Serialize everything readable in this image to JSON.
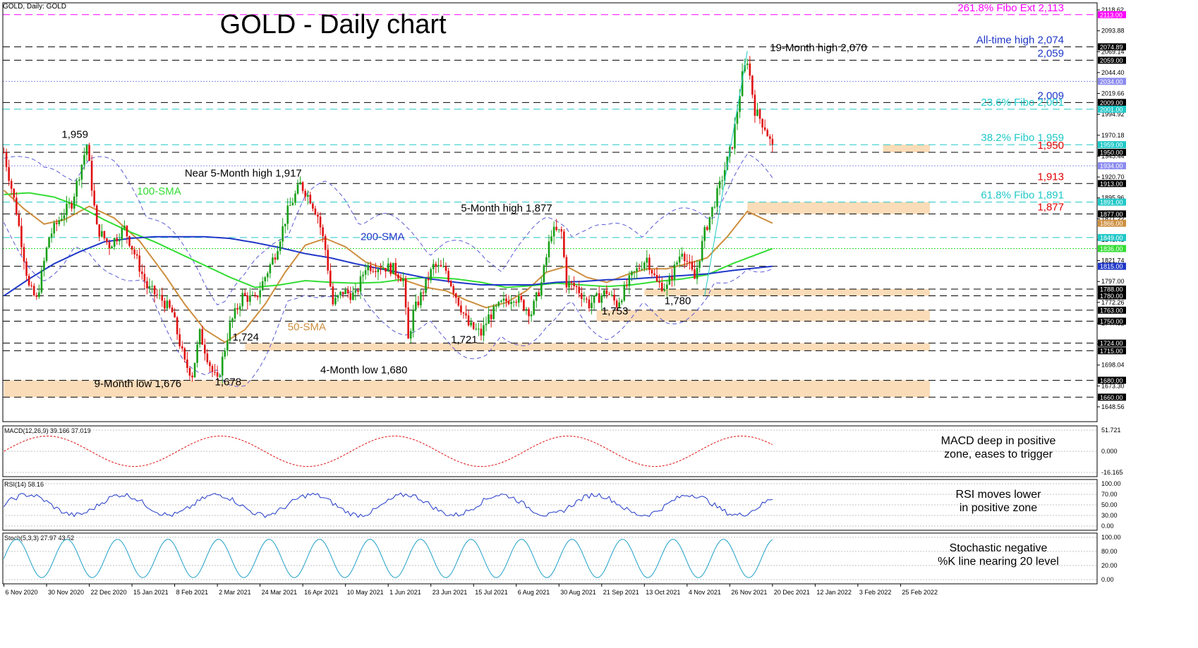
{
  "header": "GOLD, Daily: GOLD",
  "chart_data": {
    "type": "candlestick",
    "title": "GOLD - Daily chart",
    "main_y_ticks": [
      2118.62,
      2093.88,
      2069.14,
      2044.4,
      2019.66,
      1994.92,
      1970.18,
      1945.44,
      1920.7,
      1895.96,
      1871.22,
      1846.48,
      1821.74,
      1797.0,
      1772.26,
      1747.52,
      1722.78,
      1698.04,
      1673.3,
      1648.56
    ],
    "x_tick_labels": [
      "6 Nov 2020",
      "30 Nov 2020",
      "22 Dec 2020",
      "15 Jan 2021",
      "8 Feb 2021",
      "2 Mar 2021",
      "24 Mar 2021",
      "16 Apr 2021",
      "10 May 2021",
      "1 Jun 2021",
      "23 Jun 2021",
      "15 Jul 2021",
      "6 Aug 2021",
      "30 Aug 2021",
      "21 Sep 2021",
      "13 Oct 2021",
      "4 Nov 2021",
      "26 Nov 2021",
      "20 Dec 2021",
      "12 Jan 2022",
      "3 Feb 2022",
      "25 Feb 2022"
    ],
    "x_tick_pos": [
      0,
      17,
      34,
      51,
      68,
      85,
      102,
      119,
      136,
      153,
      170,
      187,
      204,
      221,
      238,
      255,
      272,
      289,
      306,
      323,
      340,
      357
    ],
    "level_boxes": [
      {
        "label": "2113.00",
        "color": "#ff00ff",
        "text": "#ffffff"
      },
      {
        "label": "2074.89",
        "color": "#000000",
        "text": "#ffffff"
      },
      {
        "label": "2059.00",
        "color": "#000000",
        "text": "#ffffff"
      },
      {
        "label": "2034.00",
        "color": "#8b8bf0",
        "text": "#ffffff"
      },
      {
        "label": "2009.00",
        "color": "#000000",
        "text": "#ffffff"
      },
      {
        "label": "2001.00",
        "color": "#20c8c8",
        "text": "#ffffff"
      },
      {
        "label": "1959.00",
        "color": "#20c8c8",
        "text": "#ffffff"
      },
      {
        "label": "1950.00",
        "color": "#000000",
        "text": "#ffffff"
      },
      {
        "label": "1934.00",
        "color": "#8b8bf0",
        "text": "#ffffff"
      },
      {
        "label": "1913.00",
        "color": "#000000",
        "text": "#ffffff"
      },
      {
        "label": "1891.00",
        "color": "#20c8c8",
        "text": "#ffffff"
      },
      {
        "label": "1877.00",
        "color": "#000000",
        "text": "#ffffff"
      },
      {
        "label": "1866.00",
        "color": "#cd8f3f",
        "text": "#ffffff"
      },
      {
        "label": "1849.00",
        "color": "#20c8c8",
        "text": "#ffffff"
      },
      {
        "label": "1836.00",
        "color": "#33dd33",
        "text": "#ffffff"
      },
      {
        "label": "1815.00",
        "color": "#1f37c8",
        "text": "#ffffff"
      },
      {
        "label": "1788.00",
        "color": "#000000",
        "text": "#ffffff"
      },
      {
        "label": "1780.00",
        "color": "#000000",
        "text": "#ffffff"
      },
      {
        "label": "1763.00",
        "color": "#000000",
        "text": "#ffffff"
      },
      {
        "label": "1750.00",
        "color": "#000000",
        "text": "#ffffff"
      },
      {
        "label": "1724.00",
        "color": "#000000",
        "text": "#ffffff"
      },
      {
        "label": "1715.00",
        "color": "#000000",
        "text": "#ffffff"
      },
      {
        "label": "1680.00",
        "color": "#000000",
        "text": "#ffffff"
      },
      {
        "label": "1660.00",
        "color": "#000000",
        "text": "#ffffff"
      }
    ],
    "levels": [
      {
        "value": 2113,
        "color": "#ff00ff",
        "dash": "10,6",
        "label": "261.8% Fibo Ext 2,113"
      },
      {
        "value": 2074.89,
        "color": "#000000",
        "dash": "10,6",
        "label": "All-time high 2,074",
        "label_color": "#1f37c8"
      },
      {
        "value": 2059,
        "color": "#000000",
        "dash": "10,6",
        "label": "2,059",
        "label_color": "#1f37c8"
      },
      {
        "value": 2034,
        "color": "#8b8bf0",
        "dash": "2,2",
        "label": ""
      },
      {
        "value": 2009,
        "color": "#000000",
        "dash": "10,6",
        "label": "2,009",
        "label_color": "#1f37c8"
      },
      {
        "value": 2001,
        "color": "#20c8c8",
        "dash": "10,6",
        "label": "23.6% Fibo 2,001",
        "label_color": "#20c8c8"
      },
      {
        "value": 1959,
        "color": "#20c8c8",
        "dash": "10,6",
        "label": "38.2% Fibo 1,959",
        "label_color": "#20c8c8"
      },
      {
        "value": 1950,
        "color": "#000000",
        "dash": "10,6",
        "label": "1,950",
        "label_color": "#e00000"
      },
      {
        "value": 1934,
        "color": "#8b8bf0",
        "dash": "2,2",
        "label": ""
      },
      {
        "value": 1913,
        "color": "#000000",
        "dash": "10,6",
        "label": "1,913",
        "label_color": "#e00000"
      },
      {
        "value": 1891,
        "color": "#20c8c8",
        "dash": "10,6",
        "label": "61.8% Fibo 1,891",
        "label_color": "#20c8c8"
      },
      {
        "value": 1877,
        "color": "#000000",
        "dash": "10,6",
        "label": "1,877",
        "label_color": "#e00000"
      },
      {
        "value": 1849,
        "color": "#20c8c8",
        "dash": "10,6",
        "label": ""
      },
      {
        "value": 1836,
        "color": "#33dd33",
        "dash": "2,2",
        "label": ""
      },
      {
        "value": 1815,
        "color": "#000000",
        "dash": "10,6",
        "label": ""
      },
      {
        "value": 1788,
        "color": "#000000",
        "dash": "10,6",
        "label": ""
      },
      {
        "value": 1780,
        "color": "#000000",
        "dash": "10,6",
        "label": ""
      },
      {
        "value": 1763,
        "color": "#000000",
        "dash": "10,6",
        "label": ""
      },
      {
        "value": 1750,
        "color": "#000000",
        "dash": "10,6",
        "label": ""
      },
      {
        "value": 1724,
        "color": "#000000",
        "dash": "10,6",
        "label": ""
      },
      {
        "value": 1715,
        "color": "#000000",
        "dash": "10,6",
        "label": ""
      },
      {
        "value": 1680,
        "color": "#000000",
        "dash": "10,6",
        "label": ""
      },
      {
        "value": 1660,
        "color": "#000000",
        "dash": "10,6",
        "label": ""
      }
    ],
    "zones": [
      {
        "from": 1680,
        "to": 1660,
        "start_bar": 0
      },
      {
        "from": 1724,
        "to": 1715,
        "start_bar": 96
      },
      {
        "from": 1763,
        "to": 1750,
        "start_bar": 236
      },
      {
        "from": 1788,
        "to": 1780,
        "start_bar": 255
      },
      {
        "from": 1891,
        "to": 1877,
        "start_bar": 296
      },
      {
        "from": 1959,
        "to": 1950,
        "start_bar": 350
      }
    ],
    "annotations": [
      {
        "text": "GOLD - Daily chart",
        "bar": 86,
        "price": 2091,
        "size": 38,
        "color": "#000000",
        "anchor": "start"
      },
      {
        "text": "19-Month high 2,070",
        "bar": 305,
        "price": 2070,
        "color": "#000000",
        "anchor": "start"
      },
      {
        "text": "1,959",
        "bar": 23,
        "price": 1967,
        "color": "#000000",
        "anchor": "start"
      },
      {
        "text": "Near 5-Month high 1,917",
        "bar": 72,
        "price": 1921,
        "color": "#000000",
        "anchor": "start"
      },
      {
        "text": "100-SMA",
        "bar": 53,
        "price": 1900,
        "color": "#33dd33",
        "anchor": "start"
      },
      {
        "text": "5-Month high 1,877",
        "bar": 182,
        "price": 1880,
        "color": "#000000",
        "anchor": "start"
      },
      {
        "text": "200-SMA",
        "bar": 142,
        "price": 1846,
        "color": "#1f37c8",
        "anchor": "start"
      },
      {
        "text": "50-SMA",
        "bar": 113,
        "price": 1739,
        "color": "#cd8f3f",
        "anchor": "start"
      },
      {
        "text": "1,724",
        "bar": 91,
        "price": 1727,
        "color": "#000000",
        "anchor": "start"
      },
      {
        "text": "1,721",
        "bar": 178,
        "price": 1724,
        "color": "#000000",
        "anchor": "start"
      },
      {
        "text": "1,753",
        "bar": 238,
        "price": 1758,
        "color": "#000000",
        "anchor": "start"
      },
      {
        "text": "1,780",
        "bar": 263,
        "price": 1770,
        "color": "#000000",
        "anchor": "start"
      },
      {
        "text": "4-Month low 1,680",
        "bar": 126,
        "price": 1688,
        "color": "#000000",
        "anchor": "start"
      },
      {
        "text": "9-Month low 1,676",
        "bar": 36,
        "price": 1672,
        "color": "#000000",
        "anchor": "start"
      },
      {
        "text": "1,678",
        "bar": 84,
        "price": 1674,
        "color": "#000000",
        "anchor": "start"
      }
    ],
    "price_path": [
      [
        0,
        1950
      ],
      [
        5,
        1880
      ],
      [
        10,
        1790
      ],
      [
        13,
        1775
      ],
      [
        18,
        1850
      ],
      [
        23,
        1875
      ],
      [
        27,
        1890
      ],
      [
        33,
        1959
      ],
      [
        37,
        1860
      ],
      [
        42,
        1840
      ],
      [
        48,
        1860
      ],
      [
        52,
        1830
      ],
      [
        57,
        1790
      ],
      [
        63,
        1775
      ],
      [
        67,
        1760
      ],
      [
        72,
        1700
      ],
      [
        75,
        1687
      ],
      [
        78,
        1735
      ],
      [
        83,
        1690
      ],
      [
        85,
        1678
      ],
      [
        90,
        1745
      ],
      [
        95,
        1780
      ],
      [
        100,
        1775
      ],
      [
        108,
        1830
      ],
      [
        113,
        1880
      ],
      [
        118,
        1912
      ],
      [
        122,
        1895
      ],
      [
        125,
        1875
      ],
      [
        128,
        1835
      ],
      [
        131,
        1770
      ],
      [
        135,
        1785
      ],
      [
        140,
        1780
      ],
      [
        144,
        1815
      ],
      [
        150,
        1815
      ],
      [
        155,
        1812
      ],
      [
        159,
        1800
      ],
      [
        160,
        1760
      ],
      [
        161,
        1727
      ],
      [
        163,
        1760
      ],
      [
        166,
        1780
      ],
      [
        171,
        1815
      ],
      [
        176,
        1810
      ],
      [
        180,
        1780
      ],
      [
        185,
        1745
      ],
      [
        190,
        1735
      ],
      [
        193,
        1755
      ],
      [
        198,
        1770
      ],
      [
        203,
        1780
      ],
      [
        210,
        1760
      ],
      [
        214,
        1795
      ],
      [
        218,
        1856
      ],
      [
        222,
        1855
      ],
      [
        224,
        1795
      ],
      [
        228,
        1790
      ],
      [
        233,
        1770
      ],
      [
        240,
        1785
      ],
      [
        244,
        1770
      ],
      [
        250,
        1803
      ],
      [
        256,
        1825
      ],
      [
        260,
        1795
      ],
      [
        264,
        1790
      ],
      [
        270,
        1835
      ],
      [
        275,
        1800
      ],
      [
        279,
        1855
      ],
      [
        285,
        1910
      ],
      [
        290,
        1960
      ],
      [
        294,
        2040
      ],
      [
        296,
        2060
      ],
      [
        299,
        2000
      ],
      [
        303,
        1980
      ],
      [
        306,
        1955
      ]
    ],
    "series": [
      {
        "name": "50-SMA",
        "color": "#cd8f3f",
        "path": [
          [
            0,
            1905
          ],
          [
            8,
            1883
          ],
          [
            16,
            1865
          ],
          [
            24,
            1870
          ],
          [
            34,
            1886
          ],
          [
            44,
            1872
          ],
          [
            54,
            1845
          ],
          [
            64,
            1805
          ],
          [
            72,
            1770
          ],
          [
            80,
            1740
          ],
          [
            88,
            1725
          ],
          [
            96,
            1740
          ],
          [
            104,
            1770
          ],
          [
            112,
            1808
          ],
          [
            120,
            1840
          ],
          [
            128,
            1848
          ],
          [
            136,
            1838
          ],
          [
            144,
            1820
          ],
          [
            152,
            1812
          ],
          [
            160,
            1798
          ],
          [
            168,
            1790
          ],
          [
            176,
            1786
          ],
          [
            184,
            1775
          ],
          [
            192,
            1766
          ],
          [
            200,
            1772
          ],
          [
            208,
            1786
          ],
          [
            216,
            1808
          ],
          [
            224,
            1815
          ],
          [
            232,
            1802
          ],
          [
            240,
            1796
          ],
          [
            248,
            1805
          ],
          [
            256,
            1812
          ],
          [
            264,
            1812
          ],
          [
            272,
            1818
          ],
          [
            280,
            1825
          ],
          [
            288,
            1850
          ],
          [
            296,
            1880
          ],
          [
            306,
            1866
          ]
        ]
      },
      {
        "name": "100-SMA",
        "color": "#33dd33",
        "path": [
          [
            0,
            1900
          ],
          [
            10,
            1902
          ],
          [
            20,
            1897
          ],
          [
            30,
            1886
          ],
          [
            40,
            1870
          ],
          [
            50,
            1856
          ],
          [
            60,
            1844
          ],
          [
            70,
            1830
          ],
          [
            80,
            1816
          ],
          [
            90,
            1802
          ],
          [
            100,
            1790
          ],
          [
            110,
            1793
          ],
          [
            120,
            1798
          ],
          [
            130,
            1796
          ],
          [
            140,
            1795
          ],
          [
            150,
            1796
          ],
          [
            160,
            1800
          ],
          [
            170,
            1802
          ],
          [
            180,
            1800
          ],
          [
            190,
            1796
          ],
          [
            200,
            1790
          ],
          [
            210,
            1792
          ],
          [
            220,
            1795
          ],
          [
            230,
            1793
          ],
          [
            240,
            1791
          ],
          [
            250,
            1793
          ],
          [
            260,
            1797
          ],
          [
            270,
            1800
          ],
          [
            280,
            1805
          ],
          [
            290,
            1818
          ],
          [
            306,
            1836
          ]
        ]
      },
      {
        "name": "200-SMA",
        "color": "#1f37c8",
        "path": [
          [
            0,
            1780
          ],
          [
            10,
            1800
          ],
          [
            20,
            1818
          ],
          [
            30,
            1832
          ],
          [
            40,
            1844
          ],
          [
            50,
            1848
          ],
          [
            60,
            1850
          ],
          [
            70,
            1850
          ],
          [
            80,
            1850
          ],
          [
            90,
            1848
          ],
          [
            100,
            1843
          ],
          [
            110,
            1837
          ],
          [
            120,
            1830
          ],
          [
            130,
            1825
          ],
          [
            140,
            1818
          ],
          [
            150,
            1812
          ],
          [
            160,
            1806
          ],
          [
            170,
            1800
          ],
          [
            180,
            1796
          ],
          [
            190,
            1793
          ],
          [
            200,
            1793
          ],
          [
            210,
            1793
          ],
          [
            220,
            1796
          ],
          [
            230,
            1797
          ],
          [
            240,
            1799
          ],
          [
            250,
            1800
          ],
          [
            260,
            1802
          ],
          [
            270,
            1804
          ],
          [
            280,
            1806
          ],
          [
            290,
            1810
          ],
          [
            306,
            1815
          ]
        ]
      }
    ],
    "indicators": {
      "macd": {
        "label": "MACD(12,26,9) 39.166 37.019",
        "ticks": [
          "51.721",
          "0.000",
          "-16.165"
        ],
        "note": [
          "MACD deep in positive",
          "zone, eases to trigger"
        ]
      },
      "rsi": {
        "label": "RSI(14) 58.16",
        "ticks": [
          "100.00",
          "70.00",
          "50.00",
          "30.00",
          "0.00"
        ],
        "note": [
          "RSI moves lower",
          "in positive zone"
        ]
      },
      "stoch": {
        "label": "Stoch(5,3,3) 27.97 43.52",
        "ticks": [
          "100.00",
          "80.00",
          "20.00",
          "0.00"
        ],
        "note": [
          "Stochastic negative",
          "%K line nearing 20 level"
        ]
      }
    }
  }
}
